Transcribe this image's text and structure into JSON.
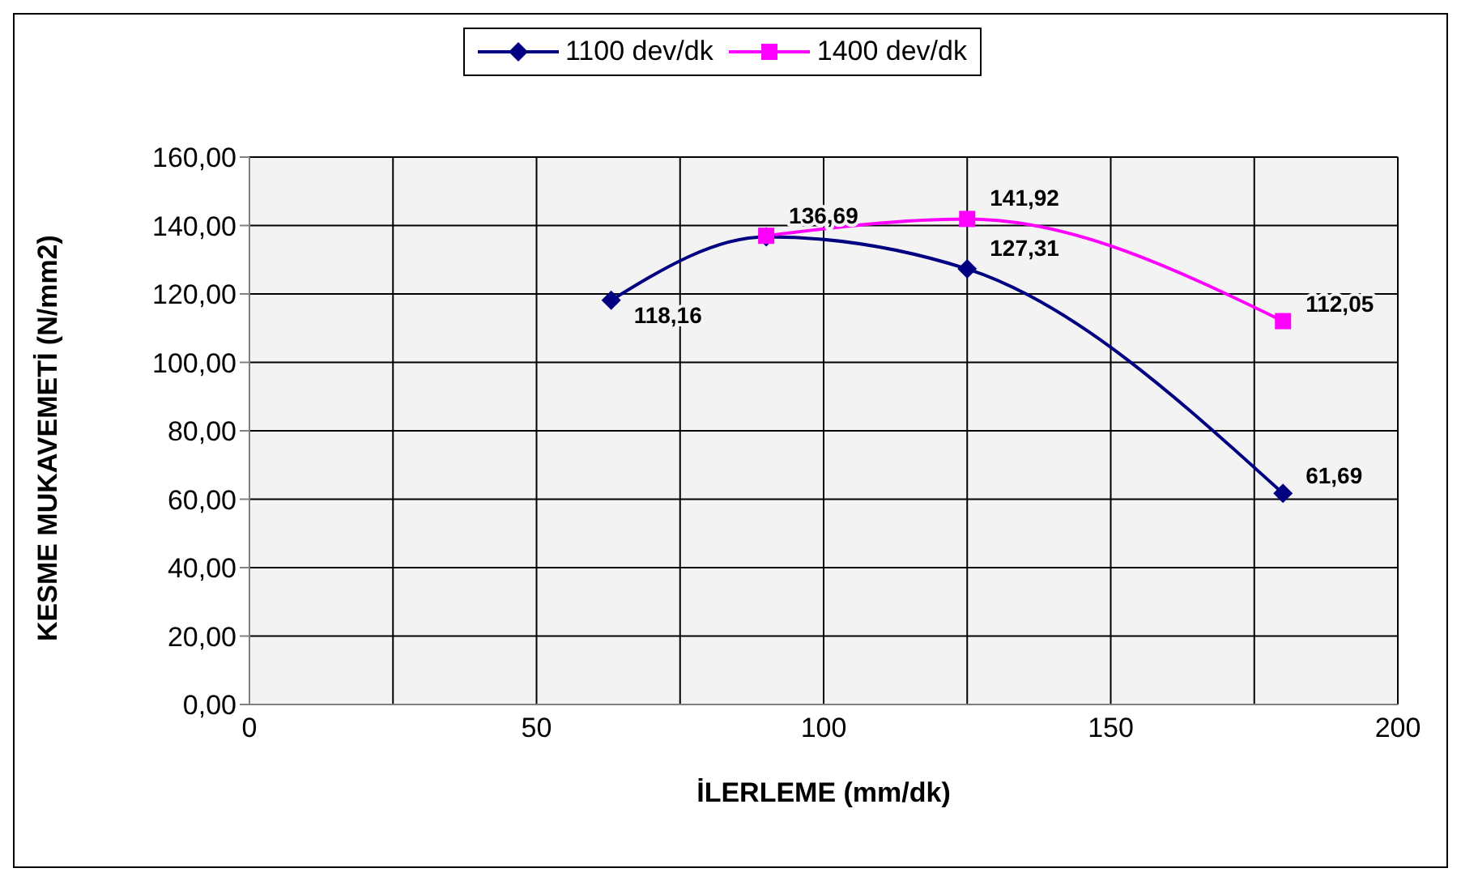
{
  "chart_data": {
    "type": "line",
    "xlabel": "İLERLEME (mm/dk)",
    "ylabel": "KESME MUKAVEMETİ (N/mm2)",
    "xlim": [
      0,
      200
    ],
    "xticks": [
      0,
      {
        "value": 25,
        "label": null
      },
      50,
      {
        "value": 75,
        "label": null
      },
      100,
      {
        "value": 125,
        "label": null
      },
      150,
      {
        "value": 175,
        "label": null
      },
      200
    ],
    "ylim": [
      0,
      160
    ],
    "yticks": [
      {
        "value": 0,
        "label": "0,00"
      },
      {
        "value": 20,
        "label": "20,00"
      },
      {
        "value": 40,
        "label": "40,00"
      },
      {
        "value": 60,
        "label": "60,00"
      },
      {
        "value": 80,
        "label": "80,00"
      },
      {
        "value": 100,
        "label": "100,00"
      },
      {
        "value": 120,
        "label": "120,00"
      },
      {
        "value": 140,
        "label": "140,00"
      },
      {
        "value": 160,
        "label": "160,00"
      }
    ],
    "grid": true,
    "legend": "top",
    "line_style": "solid",
    "series": [
      {
        "name": "1100 dev/dk",
        "color": "#000080",
        "marker": "diamond",
        "x": [
          63,
          90,
          125,
          180
        ],
        "values": [
          118.16,
          136.69,
          127.31,
          61.69
        ],
        "value_labels": [
          "118,16",
          "136,69",
          "127,31",
          "61,69"
        ]
      },
      {
        "name": "1400 dev/dk",
        "color": "#ff00ff",
        "marker": "square",
        "x": [
          90,
          125,
          180
        ],
        "values": [
          137,
          141.92,
          112.05
        ],
        "value_labels": [
          null,
          "141,92",
          "112,05"
        ]
      }
    ]
  }
}
